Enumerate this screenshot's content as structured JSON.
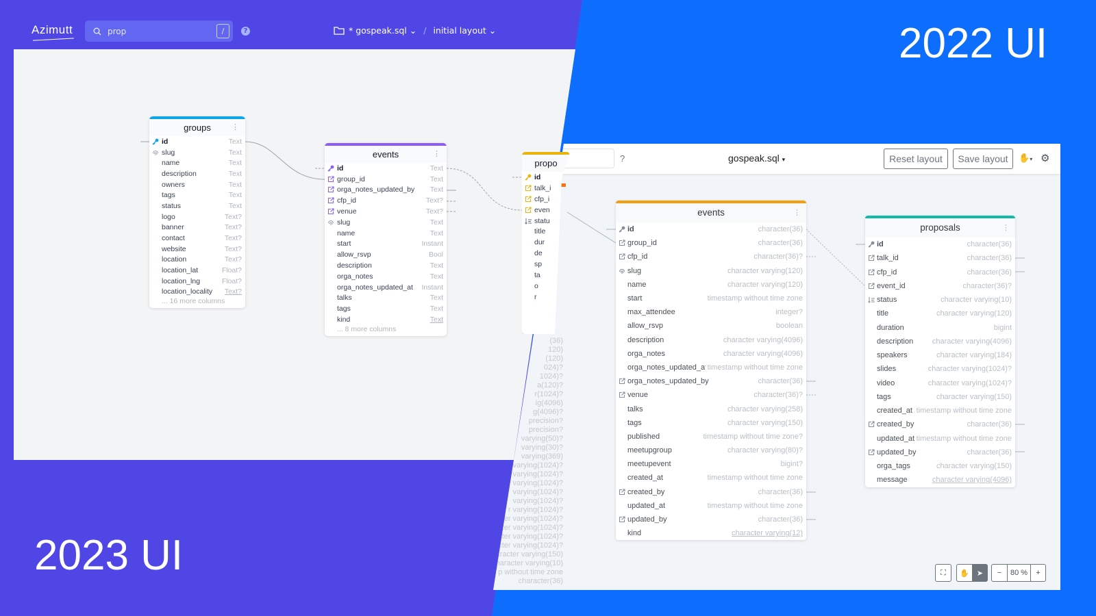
{
  "labels": {
    "ui2022": "2022 UI",
    "ui2023": "2023 UI"
  },
  "colors": {
    "purple_bg": "#4f46e5",
    "blue_bg": "#0d6efd"
  },
  "ui2023": {
    "logo": "Azimutt",
    "search": {
      "value": "prop",
      "shortcut": "/"
    },
    "help_icon": "question-circle-icon",
    "project": {
      "name": "* gospeak.sql",
      "layout": "initial layout",
      "separator": "/"
    },
    "tables": {
      "groups": {
        "name": "groups",
        "color": "#0ea5e9",
        "more": "... 16 more columns",
        "columns": [
          {
            "name": "id",
            "type": "Text",
            "icon": "pk"
          },
          {
            "name": "slug",
            "type": "Text",
            "icon": "uq"
          },
          {
            "name": "name",
            "type": "Text"
          },
          {
            "name": "description",
            "type": "Text"
          },
          {
            "name": "owners",
            "type": "Text"
          },
          {
            "name": "tags",
            "type": "Text"
          },
          {
            "name": "status",
            "type": "Text"
          },
          {
            "name": "logo",
            "type": "Text?"
          },
          {
            "name": "banner",
            "type": "Text?"
          },
          {
            "name": "contact",
            "type": "Text?"
          },
          {
            "name": "website",
            "type": "Text?"
          },
          {
            "name": "location",
            "type": "Text?"
          },
          {
            "name": "location_lat",
            "type": "Float?"
          },
          {
            "name": "location_lng",
            "type": "Float?"
          },
          {
            "name": "location_locality",
            "type": "Text?"
          }
        ]
      },
      "events": {
        "name": "events",
        "color": "#8b5cf6",
        "more": "... 8 more columns",
        "columns": [
          {
            "name": "id",
            "type": "Text",
            "icon": "pk"
          },
          {
            "name": "group_id",
            "type": "Text",
            "icon": "fk"
          },
          {
            "name": "orga_notes_updated_by",
            "type": "Text",
            "icon": "fk"
          },
          {
            "name": "cfp_id",
            "type": "Text?",
            "icon": "fk"
          },
          {
            "name": "venue",
            "type": "Text?",
            "icon": "fk"
          },
          {
            "name": "slug",
            "type": "Text",
            "icon": "uq"
          },
          {
            "name": "name",
            "type": "Text"
          },
          {
            "name": "start",
            "type": "Instant"
          },
          {
            "name": "allow_rsvp",
            "type": "Bool"
          },
          {
            "name": "description",
            "type": "Text"
          },
          {
            "name": "orga_notes",
            "type": "Text"
          },
          {
            "name": "orga_notes_updated_at",
            "type": "Instant"
          },
          {
            "name": "talks",
            "type": "Text"
          },
          {
            "name": "tags",
            "type": "Text"
          },
          {
            "name": "kind",
            "type": "Text"
          }
        ]
      },
      "proposals": {
        "name": "propo",
        "color": "#eab308",
        "columns": [
          {
            "name": "id",
            "icon": "pk"
          },
          {
            "name": "talk_i",
            "icon": "fk"
          },
          {
            "name": "cfp_i",
            "icon": "fk"
          },
          {
            "name": "even",
            "icon": "fk"
          },
          {
            "name": "statu",
            "icon": "idx"
          },
          {
            "name": "title"
          },
          {
            "name": "dur"
          },
          {
            "name": "de"
          },
          {
            "name": "sp"
          },
          {
            "name": "ta"
          },
          {
            "name": "o"
          },
          {
            "name": "r"
          }
        ]
      }
    },
    "controls": [
      "fullscreen-icon",
      "fit-view-icon"
    ]
  },
  "ui2022": {
    "project": "gospeak.sql",
    "help": "?",
    "buttons": {
      "reset": "Reset layout",
      "save": "Save layout"
    },
    "zoom": "80 %",
    "ghost_types": [
      "(36)",
      "120)",
      "(120)",
      "024)?",
      "1024)?",
      "a(120)?",
      "r(1024)?",
      "ig(4096)",
      "g(4096)?",
      "precision?",
      "precision?",
      "varying(50)?",
      "varying(30)?",
      "varying(369)",
      "varying(1024)?",
      "varying(1024)?",
      "varying(1024)?",
      "varying(1024)?",
      "varying(1024)?",
      "r varying(1024)?",
      "er varying(1024)?",
      "ter varying(1024)?",
      "acter varying(1024)?",
      "racter varying(1024)?",
      "haracter varying(150)",
      "character varying(10)",
      "p without time zone",
      "character(36)"
    ],
    "tables": {
      "events": {
        "name": "events",
        "color": "#f59e0b",
        "columns": [
          {
            "name": "id",
            "type": "character(36)",
            "icon": "pk"
          },
          {
            "name": "group_id",
            "type": "character(36)",
            "icon": "fk"
          },
          {
            "name": "cfp_id",
            "type": "character(36)?",
            "icon": "fk"
          },
          {
            "name": "slug",
            "type": "character varying(120)",
            "icon": "uq"
          },
          {
            "name": "name",
            "type": "character varying(120)"
          },
          {
            "name": "start",
            "type": "timestamp without time zone"
          },
          {
            "name": "max_attendee",
            "type": "integer?"
          },
          {
            "name": "allow_rsvp",
            "type": "boolean"
          },
          {
            "name": "description",
            "type": "character varying(4096)"
          },
          {
            "name": "orga_notes",
            "type": "character varying(4096)"
          },
          {
            "name": "orga_notes_updated_at",
            "type": "timestamp without time zone"
          },
          {
            "name": "orga_notes_updated_by",
            "type": "character(36)",
            "icon": "fk"
          },
          {
            "name": "venue",
            "type": "character(36)?",
            "icon": "fk"
          },
          {
            "name": "talks",
            "type": "character varying(258)"
          },
          {
            "name": "tags",
            "type": "character varying(150)"
          },
          {
            "name": "published",
            "type": "timestamp without time zone?"
          },
          {
            "name": "meetupgroup",
            "type": "character varying(80)?"
          },
          {
            "name": "meetupevent",
            "type": "bigint?"
          },
          {
            "name": "created_at",
            "type": "timestamp without time zone"
          },
          {
            "name": "created_by",
            "type": "character(36)",
            "icon": "fk"
          },
          {
            "name": "updated_at",
            "type": "timestamp without time zone"
          },
          {
            "name": "updated_by",
            "type": "character(36)",
            "icon": "fk"
          },
          {
            "name": "kind",
            "type": "character varying(12)"
          }
        ]
      },
      "proposals": {
        "name": "proposals",
        "color": "#14b8a6",
        "columns": [
          {
            "name": "id",
            "type": "character(36)",
            "icon": "pk"
          },
          {
            "name": "talk_id",
            "type": "character(36)",
            "icon": "fk"
          },
          {
            "name": "cfp_id",
            "type": "character(36)",
            "icon": "fk"
          },
          {
            "name": "event_id",
            "type": "character(36)?",
            "icon": "fk"
          },
          {
            "name": "status",
            "type": "character varying(10)",
            "icon": "idx"
          },
          {
            "name": "title",
            "type": "character varying(120)"
          },
          {
            "name": "duration",
            "type": "bigint"
          },
          {
            "name": "description",
            "type": "character varying(4096)"
          },
          {
            "name": "speakers",
            "type": "character varying(184)"
          },
          {
            "name": "slides",
            "type": "character varying(1024)?"
          },
          {
            "name": "video",
            "type": "character varying(1024)?"
          },
          {
            "name": "tags",
            "type": "character varying(150)"
          },
          {
            "name": "created_at",
            "type": "timestamp without time zone"
          },
          {
            "name": "created_by",
            "type": "character(36)",
            "icon": "fk"
          },
          {
            "name": "updated_at",
            "type": "timestamp without time zone"
          },
          {
            "name": "updated_by",
            "type": "character(36)",
            "icon": "fk"
          },
          {
            "name": "orga_tags",
            "type": "character varying(150)"
          },
          {
            "name": "message",
            "type": "character varying(4096)"
          }
        ]
      }
    }
  }
}
